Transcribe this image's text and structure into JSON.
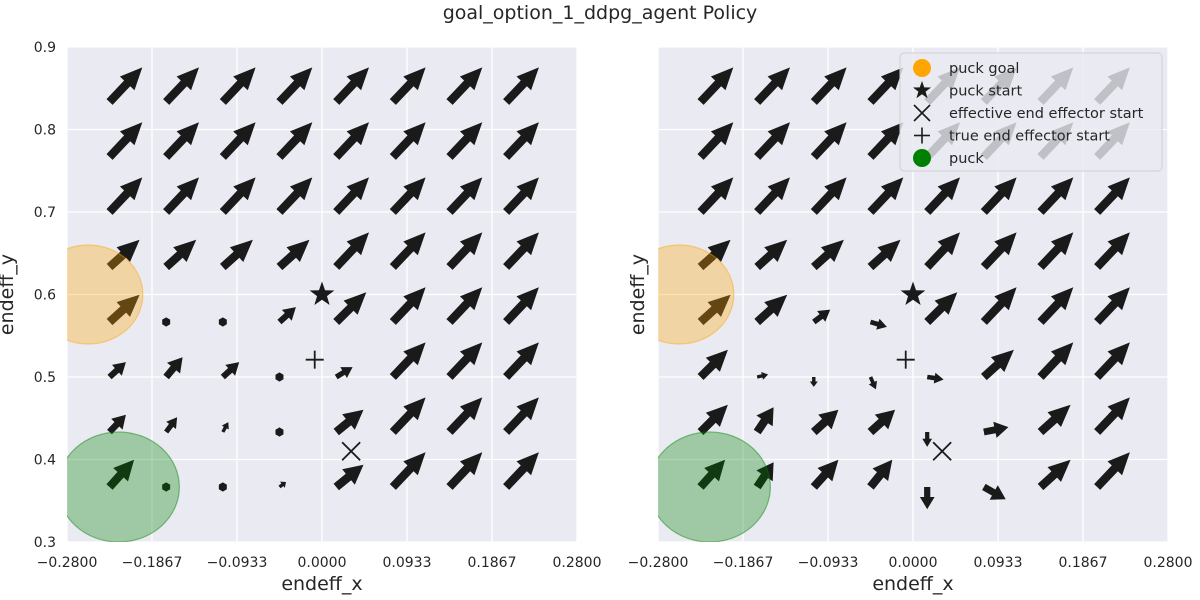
{
  "title": "goal_option_1_ddpg_agent Policy",
  "style": {
    "background": "#EAEAF2",
    "grid": "#FFFFFF",
    "arrow": "#1A1A1A",
    "goal_color": "#FFA500",
    "puck_color": "#008000"
  },
  "chart_data": [
    {
      "type": "quiver",
      "xlabel": "endeff_x",
      "ylabel": "endeff_y",
      "xlim": [
        -0.28,
        0.28
      ],
      "ylim": [
        0.3,
        0.9
      ],
      "xticks": [
        "−0.2800",
        "−0.1867",
        "−0.0933",
        "0.0000",
        "0.0933",
        "0.1867",
        "0.2800"
      ],
      "yticks": [
        "0.3",
        "0.4",
        "0.5",
        "0.6",
        "0.7",
        "0.8",
        "0.9"
      ],
      "show_ytick_labels": true,
      "grid_x": [
        -0.2333,
        -0.1711,
        -0.1089,
        -0.0467,
        0.0156,
        0.0778,
        0.14,
        0.2022
      ],
      "grid_y": [
        0.3667,
        0.4333,
        0.5,
        0.5667,
        0.6333,
        0.7,
        0.7667,
        0.8333
      ],
      "vectors": [
        [
          [
            0.45,
            0.55
          ],
          [
            0,
            0
          ],
          [
            0,
            0
          ],
          [
            0.12,
            0.1
          ],
          [
            0.5,
            0.45
          ],
          [
            0.6,
            0.7
          ],
          [
            0.6,
            0.7
          ],
          [
            0.6,
            0.7
          ]
        ],
        [
          [
            0.3,
            0.35
          ],
          [
            0.2,
            0.3
          ],
          [
            0.1,
            0.2
          ],
          [
            0,
            0
          ],
          [
            0.5,
            0.45
          ],
          [
            0.6,
            0.7
          ],
          [
            0.6,
            0.7
          ],
          [
            0.6,
            0.7
          ]
        ],
        [
          [
            0.3,
            0.3
          ],
          [
            0.3,
            0.4
          ],
          [
            0.3,
            0.3
          ],
          [
            0,
            0
          ],
          [
            0.3,
            0.2
          ],
          [
            0.6,
            0.7
          ],
          [
            0.6,
            0.7
          ],
          [
            0.6,
            0.7
          ]
        ],
        [
          [
            0.55,
            0.55
          ],
          [
            0,
            0
          ],
          [
            0,
            0
          ],
          [
            0.3,
            0.3
          ],
          [
            0.55,
            0.6
          ],
          [
            0.6,
            0.7
          ],
          [
            0.6,
            0.7
          ],
          [
            0.6,
            0.7
          ]
        ],
        [
          [
            0.55,
            0.55
          ],
          [
            0.55,
            0.55
          ],
          [
            0.55,
            0.55
          ],
          [
            0.55,
            0.55
          ],
          [
            0.6,
            0.7
          ],
          [
            0.6,
            0.7
          ],
          [
            0.6,
            0.7
          ],
          [
            0.6,
            0.7
          ]
        ],
        [
          [
            0.6,
            0.7
          ],
          [
            0.6,
            0.7
          ],
          [
            0.6,
            0.7
          ],
          [
            0.6,
            0.7
          ],
          [
            0.6,
            0.7
          ],
          [
            0.6,
            0.7
          ],
          [
            0.6,
            0.7
          ],
          [
            0.6,
            0.7
          ]
        ],
        [
          [
            0.6,
            0.7
          ],
          [
            0.6,
            0.7
          ],
          [
            0.6,
            0.7
          ],
          [
            0.6,
            0.7
          ],
          [
            0.6,
            0.7
          ],
          [
            0.6,
            0.7
          ],
          [
            0.6,
            0.7
          ],
          [
            0.6,
            0.7
          ]
        ],
        [
          [
            0.6,
            0.7
          ],
          [
            0.6,
            0.7
          ],
          [
            0.6,
            0.7
          ],
          [
            0.6,
            0.7
          ],
          [
            0.6,
            0.7
          ],
          [
            0.6,
            0.7
          ],
          [
            0.6,
            0.7
          ],
          [
            0.6,
            0.7
          ]
        ]
      ],
      "puck_goal": {
        "x": -0.2567,
        "y": 0.6,
        "r": 0.06
      },
      "puck": {
        "x": -0.2233,
        "y": 0.3667,
        "r": 0.0667
      },
      "puck_start": {
        "x": 0.0,
        "y": 0.6
      },
      "effective_end_effector_start": {
        "x": 0.032,
        "y": 0.41
      },
      "true_end_effector_start": {
        "x": -0.008,
        "y": 0.521
      },
      "legend": null
    },
    {
      "type": "quiver",
      "xlabel": "endeff_x",
      "ylabel": "endeff_y",
      "xlim": [
        -0.28,
        0.28
      ],
      "ylim": [
        0.3,
        0.9
      ],
      "xticks": [
        "−0.2800",
        "−0.1867",
        "−0.0933",
        "0.0000",
        "0.0933",
        "0.1867",
        "0.2800"
      ],
      "yticks": [
        "0.3",
        "0.4",
        "0.5",
        "0.6",
        "0.7",
        "0.8",
        "0.9"
      ],
      "show_ytick_labels": false,
      "grid_x": [
        -0.2333,
        -0.1711,
        -0.1089,
        -0.0467,
        0.0156,
        0.0778,
        0.14,
        0.2022
      ],
      "grid_y": [
        0.3667,
        0.4333,
        0.5,
        0.5667,
        0.6333,
        0.7,
        0.7667,
        0.8333
      ],
      "vectors": [
        [
          [
            0.45,
            0.55
          ],
          [
            0.3,
            0.5
          ],
          [
            0.45,
            0.55
          ],
          [
            0.4,
            0.55
          ],
          [
            0,
            -0.45
          ],
          [
            0.4,
            -0.25
          ],
          [
            0.55,
            0.55
          ],
          [
            0.6,
            0.7
          ]
        ],
        [
          [
            0.5,
            0.55
          ],
          [
            0.3,
            0.5
          ],
          [
            0.45,
            0.45
          ],
          [
            0.45,
            0.45
          ],
          [
            0,
            -0.3
          ],
          [
            0.45,
            0.1
          ],
          [
            0.55,
            0.55
          ],
          [
            0.6,
            0.7
          ]
        ],
        [
          [
            0.5,
            0.55
          ],
          [
            0.2,
            0.05
          ],
          [
            0,
            -0.2
          ],
          [
            0.1,
            -0.25
          ],
          [
            0.3,
            -0.05
          ],
          [
            0.55,
            0.55
          ],
          [
            0.6,
            0.7
          ],
          [
            0.6,
            0.7
          ]
        ],
        [
          [
            0.55,
            0.55
          ],
          [
            0.55,
            0.55
          ],
          [
            0.3,
            0.25
          ],
          [
            0.3,
            -0.1
          ],
          [
            0.55,
            0.6
          ],
          [
            0.6,
            0.7
          ],
          [
            0.6,
            0.7
          ],
          [
            0.6,
            0.7
          ]
        ],
        [
          [
            0.55,
            0.55
          ],
          [
            0.55,
            0.55
          ],
          [
            0.55,
            0.55
          ],
          [
            0.55,
            0.55
          ],
          [
            0.6,
            0.7
          ],
          [
            0.6,
            0.7
          ],
          [
            0.6,
            0.7
          ],
          [
            0.6,
            0.7
          ]
        ],
        [
          [
            0.6,
            0.7
          ],
          [
            0.6,
            0.7
          ],
          [
            0.6,
            0.7
          ],
          [
            0.6,
            0.7
          ],
          [
            0.6,
            0.7
          ],
          [
            0.6,
            0.7
          ],
          [
            0.6,
            0.7
          ],
          [
            0.6,
            0.7
          ]
        ],
        [
          [
            0.6,
            0.7
          ],
          [
            0.6,
            0.7
          ],
          [
            0.6,
            0.7
          ],
          [
            0.6,
            0.7
          ],
          [
            0.6,
            0.7
          ],
          [
            0.6,
            0.7
          ],
          [
            0.6,
            0.7
          ],
          [
            0.6,
            0.7
          ]
        ],
        [
          [
            0.6,
            0.7
          ],
          [
            0.6,
            0.7
          ],
          [
            0.6,
            0.7
          ],
          [
            0.6,
            0.7
          ],
          [
            0.6,
            0.7
          ],
          [
            0.6,
            0.7
          ],
          [
            0.6,
            0.7
          ],
          [
            0.6,
            0.7
          ]
        ]
      ],
      "puck_goal": {
        "x": -0.2567,
        "y": 0.6,
        "r": 0.06
      },
      "puck": {
        "x": -0.2233,
        "y": 0.3667,
        "r": 0.0667
      },
      "puck_start": {
        "x": 0.0,
        "y": 0.6
      },
      "effective_end_effector_start": {
        "x": 0.032,
        "y": 0.41
      },
      "true_end_effector_start": {
        "x": -0.008,
        "y": 0.521
      },
      "legend": {
        "placement": "top-right",
        "entries": [
          {
            "label": "puck goal",
            "marker": "circle",
            "color": "#FFA500"
          },
          {
            "label": "puck start",
            "marker": "star",
            "color": "#1A1A1A"
          },
          {
            "label": "effective end effector start",
            "marker": "x",
            "color": "#1A1A1A"
          },
          {
            "label": "true end effector start",
            "marker": "plus",
            "color": "#1A1A1A"
          },
          {
            "label": "puck",
            "marker": "circle",
            "color": "#008000"
          }
        ]
      }
    }
  ]
}
